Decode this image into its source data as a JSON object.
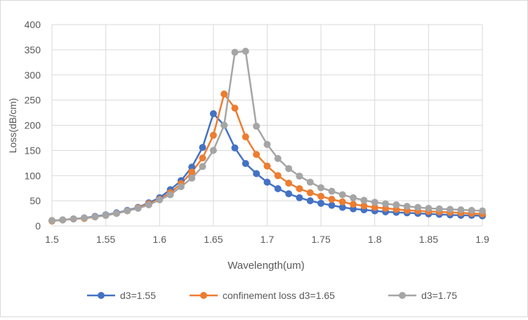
{
  "chart_data": {
    "type": "line",
    "title": "",
    "xlabel": "Wavelength(um)",
    "ylabel": "Loss(dB/cm)",
    "xlim": [
      1.5,
      1.9
    ],
    "ylim": [
      0,
      400
    ],
    "xticks": [
      "1.5",
      "1.55",
      "1.6",
      "1.65",
      "1.7",
      "1.75",
      "1.8",
      "1.85",
      "1.9"
    ],
    "yticks": [
      "0",
      "50",
      "100",
      "150",
      "200",
      "250",
      "300",
      "350",
      "400"
    ],
    "grid": true,
    "legend_position": "bottom",
    "x": [
      1.5,
      1.51,
      1.52,
      1.53,
      1.54,
      1.55,
      1.56,
      1.57,
      1.58,
      1.59,
      1.6,
      1.61,
      1.62,
      1.63,
      1.64,
      1.65,
      1.66,
      1.67,
      1.68,
      1.69,
      1.7,
      1.71,
      1.72,
      1.73,
      1.74,
      1.75,
      1.76,
      1.77,
      1.78,
      1.79,
      1.8,
      1.81,
      1.82,
      1.83,
      1.84,
      1.85,
      1.86,
      1.87,
      1.88,
      1.89,
      1.9
    ],
    "series": [
      {
        "name": "d3=1.55",
        "color": "#4472c4",
        "values": [
          10,
          12,
          14,
          16,
          19,
          22,
          26,
          31,
          37,
          46,
          56,
          72,
          90,
          117,
          156,
          223,
          200,
          155,
          124,
          104,
          87,
          74,
          64,
          56,
          50,
          45,
          41,
          37,
          34,
          32,
          30,
          28,
          27,
          26,
          25,
          24,
          23,
          22,
          21,
          21,
          20
        ]
      },
      {
        "name": "confinement loss d3=1.65",
        "color": "#ed7d31",
        "values": [
          10,
          12,
          14,
          15,
          18,
          21,
          25,
          30,
          36,
          44,
          53,
          66,
          84,
          107,
          135,
          180,
          262,
          234,
          177,
          142,
          119,
          100,
          85,
          74,
          66,
          59,
          53,
          48,
          43,
          40,
          37,
          35,
          33,
          31,
          30,
          29,
          28,
          27,
          26,
          25,
          24
        ]
      },
      {
        "name": "d3=1.75",
        "color": "#a5a5a5",
        "values": [
          11,
          12,
          14,
          16,
          18,
          21,
          25,
          30,
          35,
          42,
          52,
          62,
          78,
          95,
          118,
          150,
          200,
          345,
          347,
          198,
          162,
          134,
          114,
          99,
          87,
          76,
          69,
          62,
          56,
          51,
          47,
          44,
          42,
          39,
          37,
          35,
          34,
          33,
          32,
          31,
          30
        ]
      }
    ]
  }
}
